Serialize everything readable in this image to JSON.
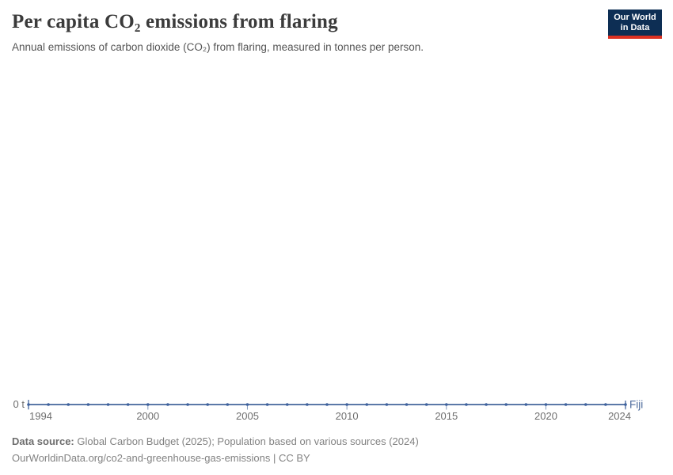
{
  "header": {
    "title": "Per capita CO₂ emissions from flaring",
    "subtitle": "Annual emissions of carbon dioxide (CO₂) from flaring, measured in tonnes per person.",
    "logo": {
      "line1": "Our World",
      "line2": "in Data"
    }
  },
  "chart_data": {
    "type": "line",
    "title": "Per capita CO₂ emissions from flaring",
    "x": [
      1994,
      1995,
      1996,
      1997,
      1998,
      1999,
      2000,
      2001,
      2002,
      2003,
      2004,
      2005,
      2006,
      2007,
      2008,
      2009,
      2010,
      2011,
      2012,
      2013,
      2014,
      2015,
      2016,
      2017,
      2018,
      2019,
      2020,
      2021,
      2022,
      2023,
      2024
    ],
    "series": [
      {
        "name": "Fiji",
        "values": [
          0,
          0,
          0,
          0,
          0,
          0,
          0,
          0,
          0,
          0,
          0,
          0,
          0,
          0,
          0,
          0,
          0,
          0,
          0,
          0,
          0,
          0,
          0,
          0,
          0,
          0,
          0,
          0,
          0,
          0,
          0
        ]
      }
    ],
    "xlabel": "",
    "ylabel": "",
    "unit": "t",
    "y_tick_labels": [
      "0 t"
    ],
    "x_ticks_labeled": [
      1994,
      2000,
      2005,
      2010,
      2015,
      2020,
      2024
    ],
    "xlim": [
      1994,
      2024
    ],
    "ylim": [
      0,
      0
    ],
    "grid": false,
    "legend_position": "end-of-line",
    "markers": "dots-every-year"
  },
  "footer": {
    "source_label": "Data source:",
    "source_text": " Global Carbon Budget (2025); Population based on various sources (2024)",
    "note": "OurWorldinData.org/co2-and-greenhouse-gas-emissions | CC BY"
  },
  "colors": {
    "accent_line": "#5b79a8",
    "accent_dot": "#3f629e",
    "series_label": "#4C6A9C",
    "tick_text": "#6e6e6e",
    "logo_bg": "#0d2e54",
    "logo_red": "#dc3122"
  }
}
